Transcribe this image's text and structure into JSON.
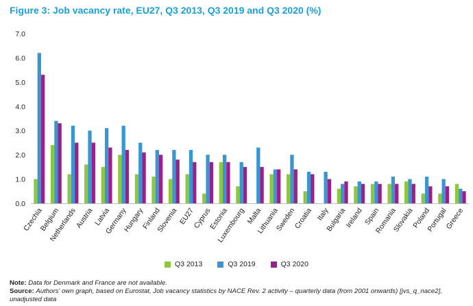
{
  "title": "Figure 3: Job vacancy rate, EU27, Q3 2013, Q3 2019 and Q3 2020 (%)",
  "colors": {
    "title": "#1aa0d2",
    "q3_2013": "#8dc63f",
    "q3_2019": "#3a96cf",
    "q3_2020": "#9b1f8c",
    "axis": "#bbbbbb"
  },
  "chart_data": {
    "type": "bar",
    "title": "Figure 3: Job vacancy rate, EU27, Q3 2013, Q3 2019 and Q3 2020 (%)",
    "xlabel": "",
    "ylabel": "",
    "ylim": [
      0,
      7
    ],
    "yticks": [
      "0.0",
      "1.0",
      "2.0",
      "3.0",
      "4.0",
      "5.0",
      "6.0",
      "7.0"
    ],
    "grid": false,
    "legend_position": "bottom-center",
    "categories": [
      "Czechia",
      "Belgium",
      "Netherlands",
      "Austria",
      "Latvia",
      "Germany",
      "Hungary",
      "Finland",
      "Slovenia",
      "EU27",
      "Cyprus",
      "Estonia",
      "Luxembourg",
      "Malta",
      "Lithuania",
      "Sweden",
      "Croatia",
      "Italy",
      "Bulgaria",
      "Ireland",
      "Spain",
      "Romania",
      "Slovakia",
      "Poland",
      "Portugal",
      "Greece"
    ],
    "series": [
      {
        "name": "Q3 2013",
        "values": [
          1.0,
          2.4,
          1.2,
          1.6,
          1.5,
          2.0,
          1.2,
          1.1,
          1.0,
          1.2,
          0.4,
          1.7,
          0.7,
          null,
          1.2,
          1.2,
          0.5,
          null,
          0.6,
          0.7,
          0.8,
          0.8,
          0.9,
          0.4,
          0.4,
          0.8
        ]
      },
      {
        "name": "Q3 2019",
        "values": [
          6.2,
          3.4,
          3.2,
          3.0,
          3.1,
          3.2,
          2.5,
          2.2,
          2.2,
          2.2,
          2.0,
          2.0,
          1.7,
          2.3,
          1.4,
          2.0,
          1.3,
          1.3,
          0.8,
          0.9,
          0.9,
          1.1,
          1.0,
          1.1,
          1.0,
          0.6
        ]
      },
      {
        "name": "Q3 2020",
        "values": [
          5.3,
          3.3,
          2.5,
          2.5,
          2.3,
          2.2,
          2.1,
          2.0,
          1.8,
          1.7,
          1.7,
          1.7,
          1.5,
          1.5,
          1.4,
          1.4,
          1.2,
          1.0,
          0.9,
          0.8,
          0.8,
          0.8,
          0.8,
          0.7,
          0.7,
          0.5
        ]
      }
    ]
  },
  "notes": {
    "note_label": "Note:",
    "note_text": "Data for Denmark and France are not available.",
    "source_label": "Source:",
    "source_text": "Authors' own graph, based on Eurostat, Job vacancy statistics by NACE Rev. 2 activity – quarterly data (from 2001 onwards) [jvs_q_nace2], unadjusted data"
  }
}
